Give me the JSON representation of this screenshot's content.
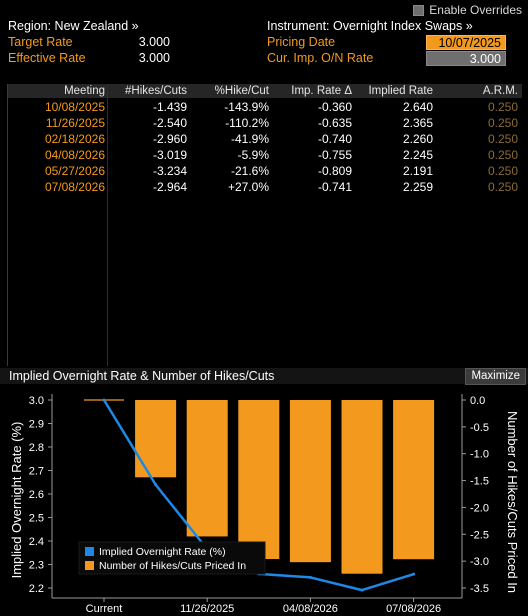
{
  "header": {
    "region_label": "Region: New Zealand »",
    "instrument_label": "Instrument: Overnight Index Swaps »",
    "enable_overrides": "Enable Overrides",
    "target_rate_label": "Target Rate",
    "target_rate_value": "3.000",
    "effective_rate_label": "Effective Rate",
    "effective_rate_value": "3.000",
    "pricing_date_label": "Pricing Date",
    "pricing_date_value": "10/07/2025",
    "cur_imp_label": "Cur. Imp. O/N Rate",
    "cur_imp_value": "3.000"
  },
  "table": {
    "columns": [
      "Meeting",
      "#Hikes/Cuts",
      "%Hike/Cut",
      "Imp. Rate Δ",
      "Implied Rate",
      "A.R.M."
    ],
    "rows": [
      [
        "10/08/2025",
        "-1.439",
        "-143.9%",
        "-0.360",
        "2.640",
        "0.250"
      ],
      [
        "11/26/2025",
        "-2.540",
        "-110.2%",
        "-0.635",
        "2.365",
        "0.250"
      ],
      [
        "02/18/2026",
        "-2.960",
        "-41.9%",
        "-0.740",
        "2.260",
        "0.250"
      ],
      [
        "04/08/2026",
        "-3.019",
        "-5.9%",
        "-0.755",
        "2.245",
        "0.250"
      ],
      [
        "05/27/2026",
        "-3.234",
        "-21.6%",
        "-0.809",
        "2.191",
        "0.250"
      ],
      [
        "07/08/2026",
        "-2.964",
        "+27.0%",
        "-0.741",
        "2.259",
        "0.250"
      ]
    ]
  },
  "chart_panel": {
    "title": "Implied Overnight Rate & Number of Hikes/Cuts",
    "maximize_label": "Maximize"
  },
  "chart_data": {
    "type": "bar",
    "categories": [
      "Current",
      "10/08/2025",
      "11/26/2025",
      "02/18/2026",
      "04/08/2026",
      "05/27/2026",
      "07/08/2026"
    ],
    "x_tick_labels": [
      "Current",
      "11/26/2025",
      "04/08/2026",
      "07/08/2026"
    ],
    "series": [
      {
        "name": "Implied Overnight Rate (%)",
        "type": "line",
        "axis": "left",
        "color": "#1e88e5",
        "values": [
          3.0,
          2.64,
          2.365,
          2.26,
          2.245,
          2.191,
          2.259
        ]
      },
      {
        "name": "Number of Hikes/Cuts Priced In",
        "type": "bar",
        "axis": "right",
        "color": "#f39a1e",
        "values": [
          0.0,
          -1.439,
          -2.54,
          -2.96,
          -3.019,
          -3.234,
          -2.964
        ]
      }
    ],
    "ylabel": "Implied Overnight Rate (%)",
    "y2label": "Number of Hikes/Cuts Priced In",
    "ylim": [
      2.2,
      3.0
    ],
    "y_ticks": [
      "3.0",
      "2.9",
      "2.8",
      "2.7",
      "2.6",
      "2.5",
      "2.4",
      "2.3",
      "2.2"
    ],
    "y2lim": [
      -3.5,
      0.0
    ],
    "y2_ticks": [
      "0.0",
      "-0.5",
      "-1.0",
      "-1.5",
      "-2.0",
      "-2.5",
      "-3.0",
      "-3.5"
    ],
    "legend_position": "bottom-left",
    "grid": false
  }
}
